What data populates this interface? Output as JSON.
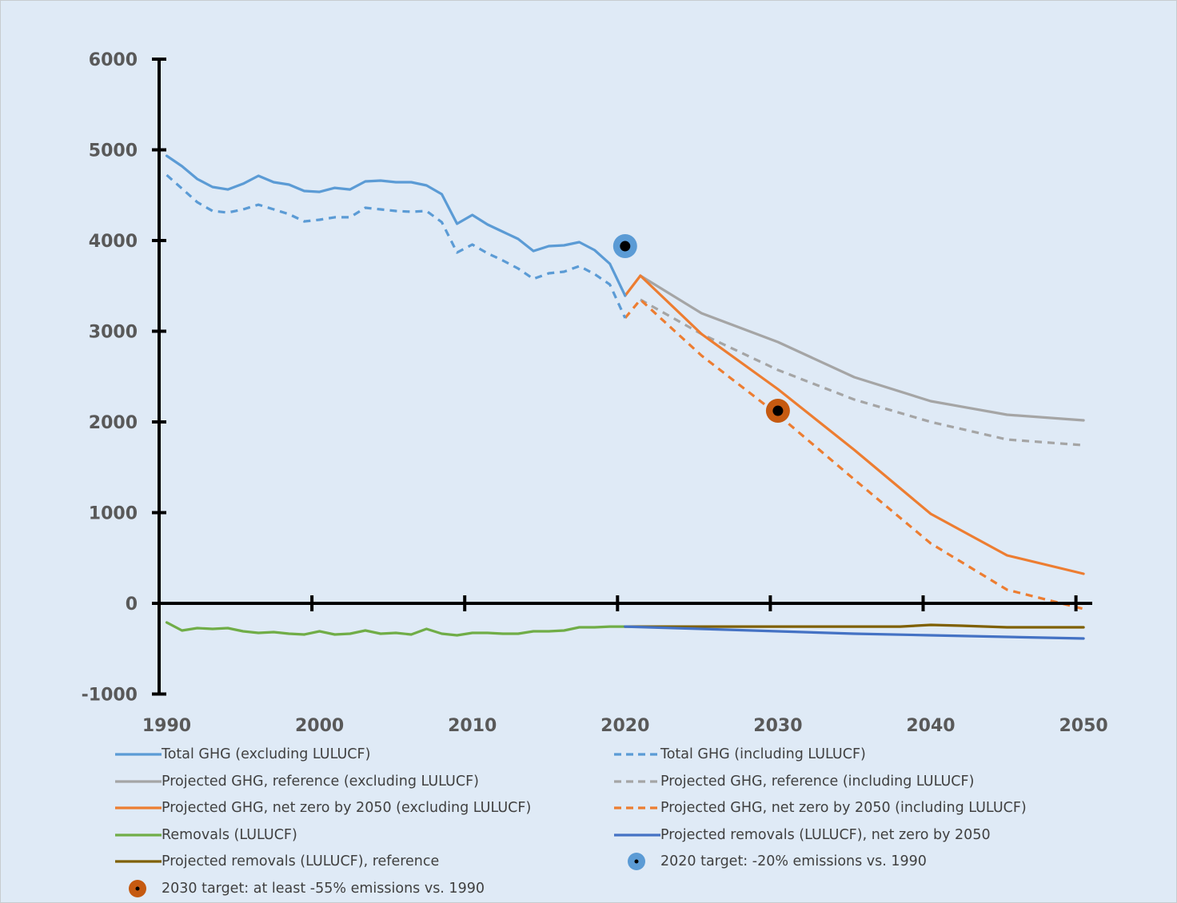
{
  "chart_data": {
    "type": "line",
    "title": "",
    "xlabel": "",
    "ylabel": "",
    "xlim": [
      1990,
      2050
    ],
    "ylim": [
      -1000,
      6000
    ],
    "x_ticks": [
      "1990",
      "2000",
      "2010",
      "2020",
      "2030",
      "2040",
      "2050"
    ],
    "y_ticks": [
      "6000",
      "5000",
      "4000",
      "3000",
      "2000",
      "1000",
      "0",
      "-1000"
    ],
    "grid": false,
    "legend_position": "bottom",
    "series": [
      {
        "name": "Total GHG (excluding LULUCF)",
        "color": "#5b9bd5",
        "dash": "solid",
        "x": [
          1990,
          1991,
          1992,
          1993,
          1994,
          1995,
          1996,
          1997,
          1998,
          1999,
          2000,
          2001,
          2002,
          2003,
          2004,
          2005,
          2006,
          2007,
          2008,
          2009,
          2010,
          2011,
          2012,
          2013,
          2014,
          2015,
          2016,
          2017,
          2018,
          2019,
          2020
        ],
        "values": [
          4934,
          4819,
          4678,
          4590,
          4563,
          4626,
          4714,
          4643,
          4617,
          4546,
          4537,
          4581,
          4563,
          4652,
          4661,
          4643,
          4643,
          4608,
          4511,
          4185,
          4282,
          4176,
          4097,
          4018,
          3885,
          3938,
          3947,
          3982,
          3894,
          3744,
          3392
        ]
      },
      {
        "name": "Total GHG (including LULUCF)",
        "color": "#5b9bd5",
        "dash": "dashed",
        "x": [
          1990,
          1991,
          1992,
          1993,
          1994,
          1995,
          1996,
          1997,
          1998,
          1999,
          2000,
          2001,
          2002,
          2003,
          2004,
          2005,
          2006,
          2007,
          2008,
          2009,
          2010,
          2011,
          2012,
          2013,
          2014,
          2015,
          2016,
          2017,
          2018,
          2019,
          2020
        ],
        "values": [
          4722,
          4573,
          4423,
          4326,
          4308,
          4344,
          4396,
          4344,
          4291,
          4211,
          4229,
          4256,
          4256,
          4361,
          4344,
          4326,
          4317,
          4326,
          4203,
          3868,
          3956,
          3859,
          3780,
          3692,
          3577,
          3639,
          3656,
          3718,
          3630,
          3515,
          3145
        ]
      },
      {
        "name": "Projected GHG, reference (excluding LULUCF)",
        "color": "#a5a5a5",
        "dash": "solid",
        "x": [
          2021,
          2025,
          2030,
          2035,
          2040,
          2045,
          2050
        ],
        "values": [
          3612,
          3198,
          2881,
          2493,
          2229,
          2079,
          2018
        ]
      },
      {
        "name": "Projected GHG, reference (including LULUCF)",
        "color": "#a5a5a5",
        "dash": "dashed",
        "x": [
          2021,
          2025,
          2030,
          2035,
          2040,
          2045,
          2050
        ],
        "values": [
          3348,
          2969,
          2573,
          2247,
          2000,
          1806,
          1744
        ]
      },
      {
        "name": "Projected GHG, net zero by 2050 (excluding LULUCF)",
        "color": "#ed7d31",
        "dash": "solid",
        "x": [
          2020,
          2021,
          2025,
          2030,
          2035,
          2040,
          2045,
          2050
        ],
        "values": [
          3392,
          3612,
          2969,
          2361,
          1692,
          987,
          529,
          326
        ]
      },
      {
        "name": "Projected GHG, net zero by 2050 (including LULUCF)",
        "color": "#ed7d31",
        "dash": "dashed",
        "x": [
          2020,
          2021,
          2025,
          2030,
          2035,
          2040,
          2045,
          2050
        ],
        "values": [
          3145,
          3348,
          2731,
          2080,
          1366,
          661,
          150,
          -62
        ]
      },
      {
        "name": "Removals (LULUCF)",
        "color": "#70ad47",
        "dash": "solid",
        "x": [
          1990,
          1991,
          1992,
          1993,
          1994,
          1995,
          1996,
          1997,
          1998,
          1999,
          2000,
          2001,
          2002,
          2003,
          2004,
          2005,
          2006,
          2007,
          2008,
          2009,
          2010,
          2011,
          2012,
          2013,
          2014,
          2015,
          2016,
          2017,
          2018,
          2019,
          2020
        ],
        "values": [
          -211,
          -300,
          -273,
          -282,
          -273,
          -308,
          -326,
          -317,
          -335,
          -344,
          -308,
          -344,
          -335,
          -300,
          -335,
          -326,
          -344,
          -282,
          -335,
          -352,
          -326,
          -326,
          -335,
          -335,
          -308,
          -308,
          -300,
          -264,
          -264,
          -256,
          -256
        ]
      },
      {
        "name": "Projected removals (LULUCF), net zero by 2050",
        "color": "#4472c4",
        "dash": "solid",
        "x": [
          2020,
          2025,
          2030,
          2035,
          2040,
          2045,
          2050
        ],
        "values": [
          -256,
          -282,
          -308,
          -335,
          -352,
          -370,
          -388
        ]
      },
      {
        "name": "Projected removals (LULUCF), reference",
        "color": "#7f6000",
        "dash": "solid",
        "x": [
          2020,
          2025,
          2030,
          2035,
          2038,
          2040,
          2042,
          2045,
          2050
        ],
        "values": [
          -256,
          -256,
          -256,
          -256,
          -256,
          -238,
          -247,
          -264,
          -264
        ]
      }
    ],
    "markers": [
      {
        "name": "2020 target: -20% emissions vs. 1990",
        "x": 2020,
        "value": 3938,
        "color": "#5b9bd5",
        "center_color": "#000000"
      },
      {
        "name": "2030 target: at least -55% emissions vs. 1990",
        "x": 2030,
        "value": 2123,
        "color": "#c55a11",
        "center_color": "#000000"
      }
    ]
  },
  "legend": {
    "items": [
      {
        "label": "Total GHG (excluding LULUCF)",
        "color": "#5b9bd5",
        "kind": "solid"
      },
      {
        "label": "Total GHG (including LULUCF)",
        "color": "#5b9bd5",
        "kind": "dashed"
      },
      {
        "label": "Projected GHG, reference (excluding LULUCF)",
        "color": "#a5a5a5",
        "kind": "solid"
      },
      {
        "label": "Projected GHG, reference (including LULUCF)",
        "color": "#a5a5a5",
        "kind": "dashed"
      },
      {
        "label": "Projected GHG, net zero by 2050 (excluding LULUCF)",
        "color": "#ed7d31",
        "kind": "solid"
      },
      {
        "label": "Projected GHG, net zero by 2050 (including LULUCF)",
        "color": "#ed7d31",
        "kind": "dashed"
      },
      {
        "label": "Removals (LULUCF)",
        "color": "#70ad47",
        "kind": "solid"
      },
      {
        "label": "Projected removals (LULUCF), net zero by 2050",
        "color": "#4472c4",
        "kind": "solid"
      },
      {
        "label": "Projected removals (LULUCF), reference",
        "color": "#7f6000",
        "kind": "solid"
      },
      {
        "label": "2020 target: -20% emissions vs. 1990",
        "color": "#5b9bd5",
        "kind": "marker"
      },
      {
        "label": "2030 target: at least -55% emissions vs. 1990",
        "color": "#c55a11",
        "kind": "marker"
      }
    ]
  }
}
